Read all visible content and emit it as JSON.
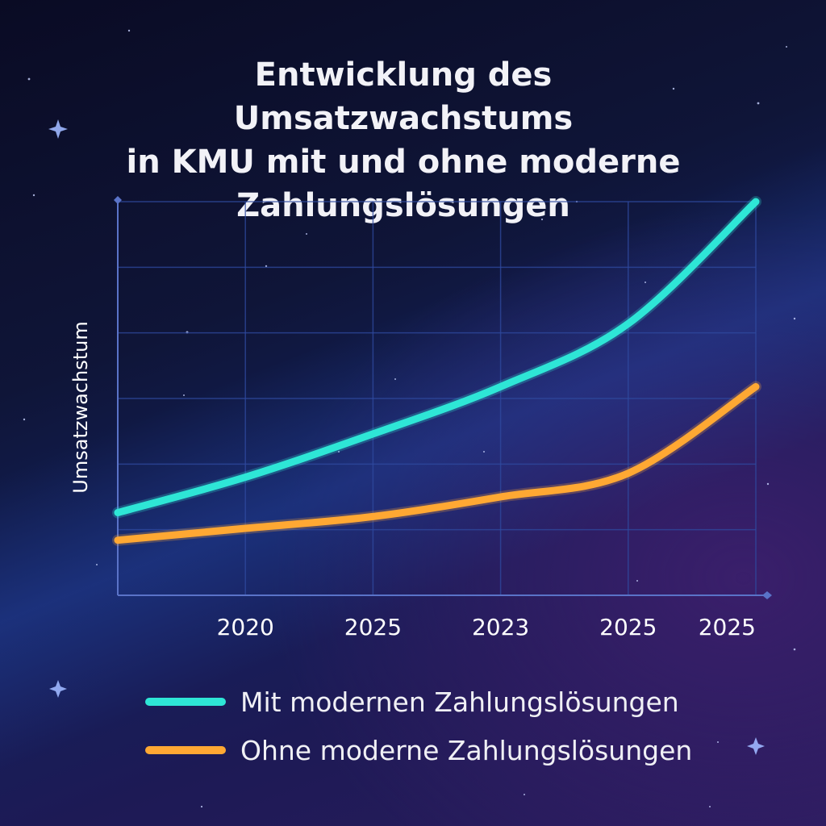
{
  "chart_data": {
    "type": "line",
    "title": "Entwicklung des Umsatzwachstums\nin KMU mit und ohne moderne\nZahlungslösungen",
    "xlabel": "",
    "ylabel": "Umsatzwachstum",
    "x_ticks": [
      "",
      "2020",
      "2025",
      "2023",
      "2025",
      "2025"
    ],
    "ylim": [
      0,
      100
    ],
    "grid": true,
    "legend_position": "bottom",
    "series": [
      {
        "name": "Mit modernen Zahlungslösungen",
        "color": "#2ee6d6",
        "values": [
          21,
          30,
          41,
          53,
          69,
          100
        ]
      },
      {
        "name": "Ohne moderne Zahlungslösungen",
        "color": "#ffa833",
        "values": [
          14,
          17,
          20,
          25,
          31,
          53
        ]
      }
    ]
  }
}
